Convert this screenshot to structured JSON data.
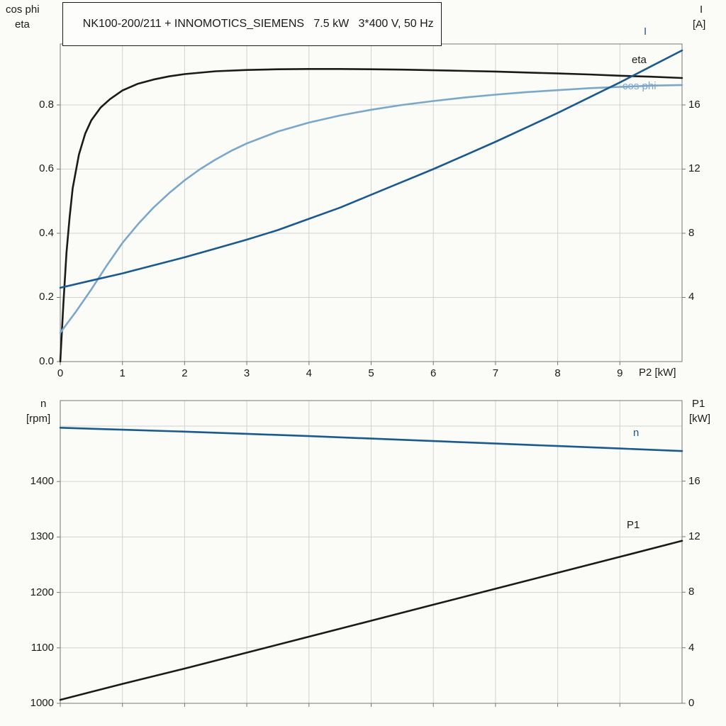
{
  "title": "NK100-200/211 + INNOMOTICS_SIEMENS   7.5 kW   3*400 V, 50 Hz",
  "colors": {
    "black": "#1a1a1a",
    "dark_blue": "#1a5a8f",
    "light_blue": "#7ba7cb",
    "grid": "#d2d2d2",
    "frame": "#777777"
  },
  "labels": {
    "top_left_1": "cos phi",
    "top_left_2": "eta",
    "top_right_1": "I",
    "top_right_2": "[A]",
    "x_axis": "P2 [kW]",
    "bottom_left_1": "n",
    "bottom_left_2": "[rpm]",
    "bottom_right_1": "P1",
    "bottom_right_2": "[kW]",
    "curve_I": "I",
    "curve_eta": "eta",
    "curve_cosphi": "cos phi",
    "curve_n": "n",
    "curve_P1": "P1"
  },
  "chart_data": [
    {
      "id": "top",
      "type": "line",
      "title": "NK100-200/211 + INNOMOTICS_SIEMENS   7.5 kW   3*400 V, 50 Hz",
      "xlabel": "P2 [kW]",
      "xlim": [
        0,
        10
      ],
      "x_ticks": [
        0,
        1,
        2,
        3,
        4,
        5,
        6,
        7,
        8,
        9
      ],
      "grid": true,
      "left_axis": {
        "label": "cos phi / eta",
        "lim": [
          0,
          0.99
        ],
        "ticks": [
          0,
          0.2,
          0.4,
          0.6,
          0.8
        ],
        "tick_labels": [
          "0.0",
          "0.2",
          "0.4",
          "0.6",
          "0.8"
        ]
      },
      "right_axis": {
        "label": "I [A]",
        "lim": [
          0,
          19.8
        ],
        "ticks": [
          4,
          8,
          12,
          16
        ],
        "tick_labels": [
          "4",
          "8",
          "12",
          "16"
        ]
      },
      "series": [
        {
          "name": "eta",
          "axis": "left",
          "color_key": "black",
          "x": [
            0,
            0.05,
            0.1,
            0.15,
            0.2,
            0.3,
            0.4,
            0.5,
            0.65,
            0.8,
            1,
            1.25,
            1.5,
            1.75,
            2,
            2.5,
            3,
            3.5,
            4,
            4.5,
            5,
            5.5,
            6,
            6.5,
            7,
            7.5,
            8,
            8.5,
            9,
            9.5,
            10
          ],
          "y": [
            0,
            0.18,
            0.34,
            0.45,
            0.54,
            0.645,
            0.71,
            0.752,
            0.792,
            0.818,
            0.845,
            0.866,
            0.879,
            0.889,
            0.896,
            0.905,
            0.909,
            0.911,
            0.912,
            0.912,
            0.911,
            0.91,
            0.908,
            0.906,
            0.904,
            0.901,
            0.898,
            0.895,
            0.891,
            0.888,
            0.884
          ]
        },
        {
          "name": "cos phi",
          "axis": "left",
          "color_key": "light_blue",
          "x": [
            0,
            0.25,
            0.5,
            0.75,
            1,
            1.25,
            1.5,
            1.75,
            2,
            2.25,
            2.5,
            2.75,
            3,
            3.5,
            4,
            4.5,
            5,
            5.5,
            6,
            6.5,
            7,
            7.5,
            8,
            8.5,
            9,
            9.5,
            10
          ],
          "y": [
            0.09,
            0.155,
            0.225,
            0.3,
            0.37,
            0.428,
            0.48,
            0.525,
            0.565,
            0.6,
            0.63,
            0.657,
            0.68,
            0.717,
            0.745,
            0.767,
            0.785,
            0.8,
            0.812,
            0.823,
            0.832,
            0.84,
            0.846,
            0.852,
            0.856,
            0.86,
            0.862
          ]
        },
        {
          "name": "I",
          "axis": "right",
          "color_key": "dark_blue",
          "x": [
            0,
            0.5,
            1,
            1.5,
            2,
            2.5,
            3,
            3.5,
            4,
            4.5,
            5,
            5.5,
            6,
            6.5,
            7,
            7.5,
            8,
            8.5,
            9,
            9.5,
            10
          ],
          "y": [
            4.6,
            5.05,
            5.5,
            6.0,
            6.5,
            7.05,
            7.6,
            8.2,
            8.9,
            9.6,
            10.4,
            11.2,
            12.0,
            12.85,
            13.7,
            14.6,
            15.5,
            16.45,
            17.4,
            18.4,
            19.4
          ]
        }
      ]
    },
    {
      "id": "bottom",
      "type": "line",
      "xlabel": "P2 [kW]",
      "xlim": [
        0,
        10
      ],
      "x_ticks": [
        0,
        1,
        2,
        3,
        4,
        5,
        6,
        7,
        8,
        9
      ],
      "grid": true,
      "left_axis": {
        "label": "n [rpm]",
        "lim": [
          1000,
          1546
        ],
        "ticks": [
          1000,
          1100,
          1200,
          1300,
          1400
        ],
        "tick_labels": [
          "1000",
          "1100",
          "1200",
          "1300",
          "1400"
        ],
        "grid_extra": [
          1500
        ]
      },
      "right_axis": {
        "label": "P1 [kW]",
        "lim": [
          0,
          21.8
        ],
        "ticks": [
          0,
          4,
          8,
          12,
          16
        ],
        "tick_labels": [
          "0",
          "4",
          "8",
          "12",
          "16"
        ]
      },
      "series": [
        {
          "name": "n",
          "axis": "left",
          "color_key": "dark_blue",
          "x": [
            0,
            1,
            2,
            3,
            4,
            5,
            6,
            7,
            8,
            9,
            10
          ],
          "y": [
            1497,
            1493.5,
            1490,
            1486,
            1482,
            1477.5,
            1473,
            1468.5,
            1464,
            1459.5,
            1455
          ]
        },
        {
          "name": "P1",
          "axis": "right",
          "color_key": "black",
          "x": [
            0,
            1,
            2,
            3,
            4,
            5,
            6,
            7,
            8,
            9,
            10
          ],
          "y": [
            0.25,
            1.4,
            2.5,
            3.65,
            4.8,
            5.95,
            7.1,
            8.25,
            9.4,
            10.55,
            11.7
          ]
        }
      ]
    }
  ]
}
